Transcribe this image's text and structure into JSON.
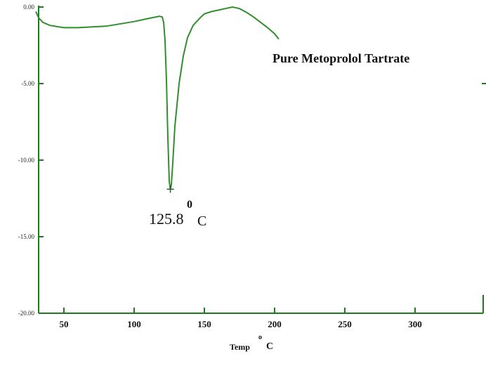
{
  "chart_data": {
    "type": "line",
    "title": "",
    "xlabel": "Temp",
    "xlabel_sup": "o",
    "xlabel_unit": "C",
    "ylabel": "",
    "xlim": [
      30,
      350
    ],
    "ylim": [
      -20,
      0
    ],
    "grid": false,
    "series": [
      {
        "name": "Pure Metoprolol Tartrate",
        "color": "#2f8f2f",
        "x": [
          30,
          32,
          35,
          40,
          50,
          60,
          80,
          100,
          110,
          118,
          120,
          121,
          122,
          123,
          124,
          125,
          125.8,
          126.5,
          127.5,
          129,
          132,
          135,
          138,
          142,
          147,
          150,
          155,
          160,
          165,
          170,
          175,
          180,
          185,
          190,
          195,
          200,
          203
        ],
        "y": [
          -0.3,
          -0.7,
          -1.0,
          -1.2,
          -1.35,
          -1.35,
          -1.25,
          -0.95,
          -0.75,
          -0.6,
          -0.65,
          -1.0,
          -2.2,
          -4.8,
          -8.5,
          -11.4,
          -11.9,
          -11.6,
          -10.2,
          -7.8,
          -5.0,
          -3.2,
          -2.0,
          -1.2,
          -0.7,
          -0.45,
          -0.3,
          -0.2,
          -0.1,
          0.0,
          -0.1,
          -0.35,
          -0.65,
          -1.0,
          -1.35,
          -1.75,
          -2.1
        ]
      }
    ],
    "x_ticks": [
      50,
      100,
      150,
      200,
      250,
      300
    ],
    "x_tick_labels": [
      "50",
      "100",
      "150",
      "200",
      "250",
      "300"
    ],
    "y_ticks": [
      0,
      -5,
      -10,
      -15,
      -20
    ],
    "y_tick_labels": [
      "0.00",
      "-5.00",
      "-10.00",
      "-15.00",
      "-20.00"
    ],
    "annotations": [
      {
        "text": "125.8",
        "sup": "0",
        "unit": "C",
        "x": 125.8,
        "y": -11.9
      }
    ],
    "series_label": "Pure Metoprolol Tartrate"
  }
}
